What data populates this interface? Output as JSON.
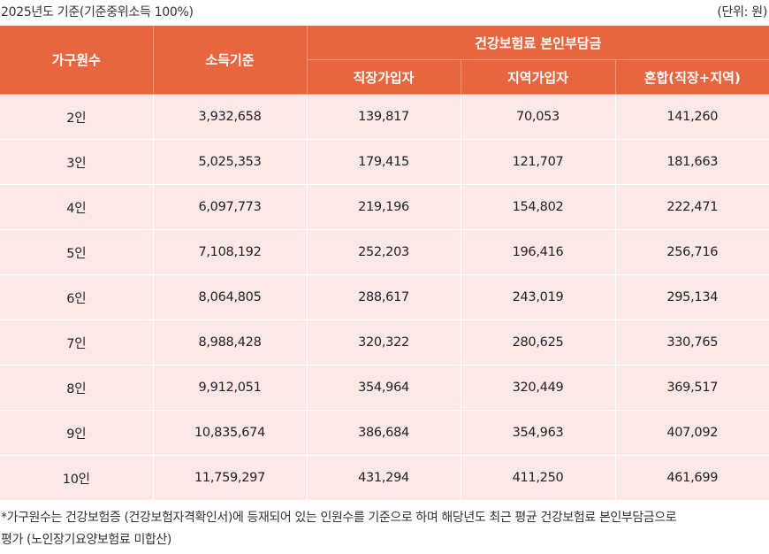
{
  "header": {
    "year_basis": "2025년도 기준(기준중위소득 100%)",
    "unit": "(단위: 원)"
  },
  "table": {
    "headers": {
      "household": "가구원수",
      "income": "소득기준",
      "premium_group": "건강보험료 본인부담금",
      "workplace": "직장가입자",
      "regional": "지역가입자",
      "mixed": "혼합(직장+지역)"
    },
    "rows": [
      {
        "household": "2인",
        "income": "3,932,658",
        "workplace": "139,817",
        "regional": "70,053",
        "mixed": "141,260"
      },
      {
        "household": "3인",
        "income": "5,025,353",
        "workplace": "179,415",
        "regional": "121,707",
        "mixed": "181,663"
      },
      {
        "household": "4인",
        "income": "6,097,773",
        "workplace": "219,196",
        "regional": "154,802",
        "mixed": "222,471"
      },
      {
        "household": "5인",
        "income": "7,108,192",
        "workplace": "252,203",
        "regional": "196,416",
        "mixed": "256,716"
      },
      {
        "household": "6인",
        "income": "8,064,805",
        "workplace": "288,617",
        "regional": "243,019",
        "mixed": "295,134"
      },
      {
        "household": "7인",
        "income": "8,988,428",
        "workplace": "320,322",
        "regional": "280,625",
        "mixed": "330,765"
      },
      {
        "household": "8인",
        "income": "9,912,051",
        "workplace": "354,964",
        "regional": "320,449",
        "mixed": "369,517"
      },
      {
        "household": "9인",
        "income": "10,835,674",
        "workplace": "386,684",
        "regional": "354,963",
        "mixed": "407,092"
      },
      {
        "household": "10인",
        "income": "11,759,297",
        "workplace": "431,294",
        "regional": "411,250",
        "mixed": "461,699"
      }
    ]
  },
  "footnote": {
    "line1": "*가구원수는 건강보험증 (건강보험자격확인서)에 등재되어 있는 인원수를 기준으로 하며 해당년도 최근 평균 건강보험료 본인부담금으로",
    "line2": "평가 (노인장기요양보험료 미합산)"
  },
  "colors": {
    "header_bg": "#e8663f",
    "row_bg": "#fce8e6",
    "header_text": "#ffffff"
  }
}
